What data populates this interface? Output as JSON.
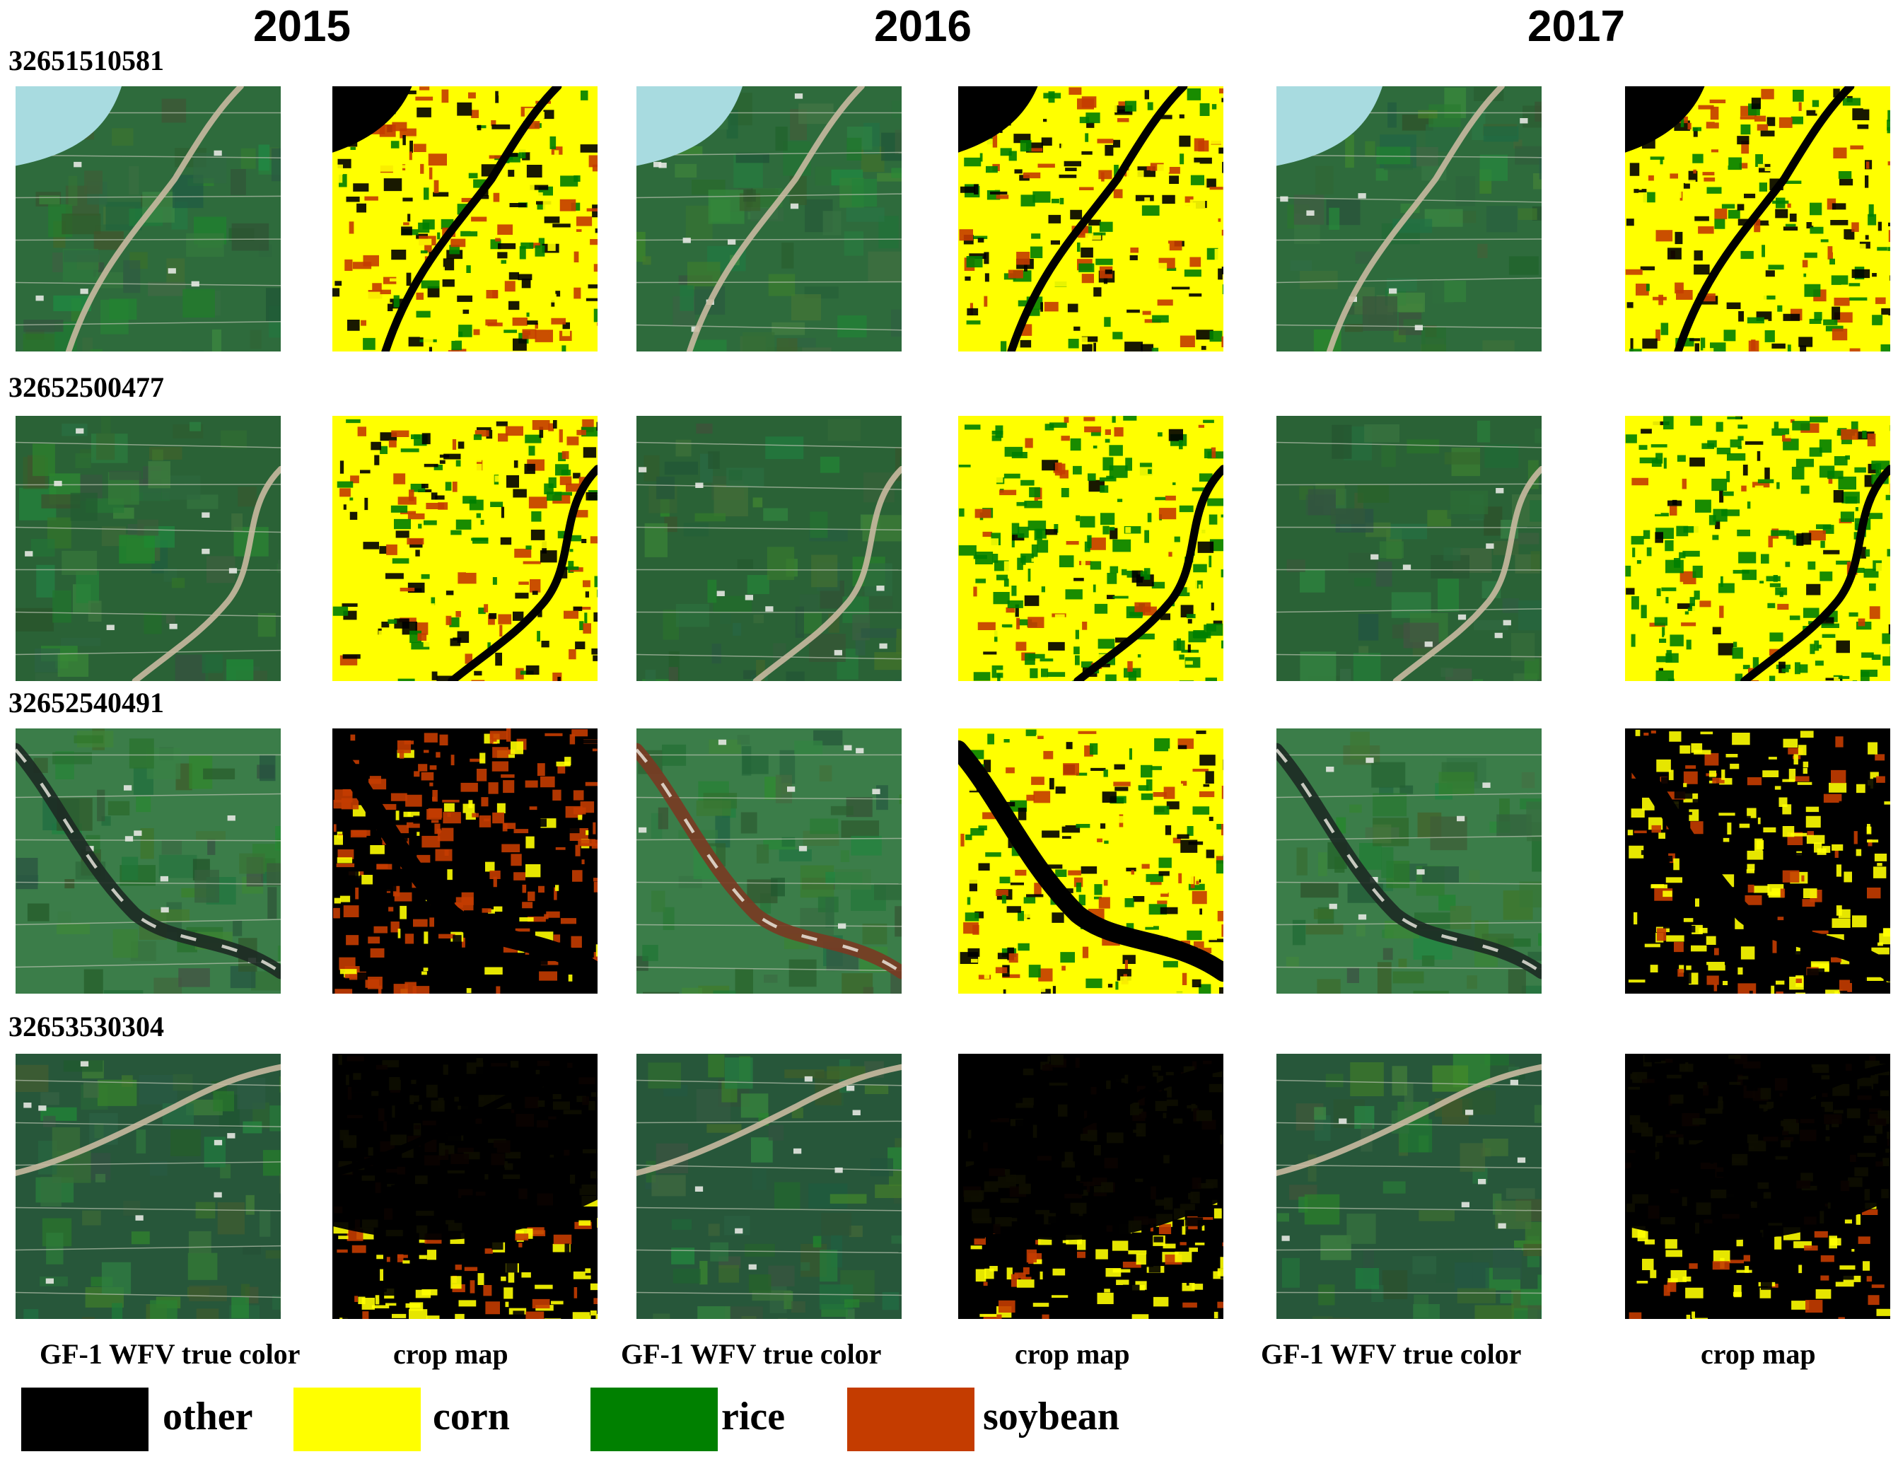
{
  "years": [
    "2015",
    "2016",
    "2017"
  ],
  "tile_ids": [
    "32651510581",
    "32652500477",
    "32652540491",
    "32653530304"
  ],
  "captions": {
    "true_color": "GF-1 WFV true color",
    "crop_map": "crop map"
  },
  "legend": [
    {
      "label": "other",
      "color": "#000000"
    },
    {
      "label": "corn",
      "color": "#ffff00"
    },
    {
      "label": "rice",
      "color": "#008000"
    },
    {
      "label": "soybean",
      "color": "#c43c00"
    }
  ],
  "colors": {
    "other": "#000000",
    "corn": "#ffff00",
    "rice": "#008000",
    "soybean": "#c43c00",
    "field_green": "#2f6e3a",
    "water_cyan": "#a8dbe0",
    "river_brown": "#7a3a22"
  }
}
